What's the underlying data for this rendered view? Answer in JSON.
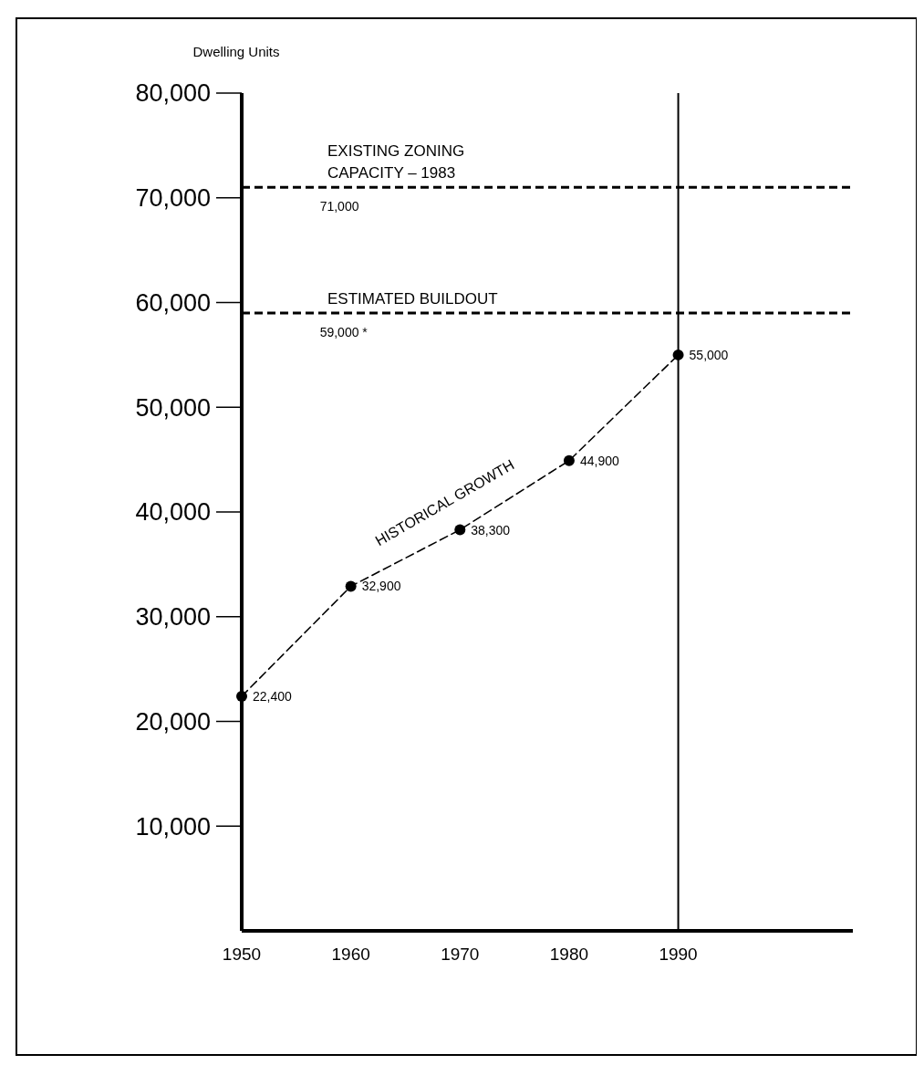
{
  "chart_data": {
    "type": "line",
    "ylabel": "Dwelling Units",
    "x": [
      1950,
      1960,
      1970,
      1980,
      1990
    ],
    "series": [
      {
        "name": "HISTORICAL GROWTH",
        "color": "#000000",
        "values": [
          22400,
          32900,
          38300,
          44900,
          55000
        ],
        "value_labels": [
          "22,400",
          "32,900",
          "38,300",
          "44,900",
          "55,000"
        ]
      }
    ],
    "xlim": [
      1950,
      2006
    ],
    "xticks": [
      1950,
      1960,
      1970,
      1980,
      1990
    ],
    "ylim": [
      0,
      80000
    ],
    "yticks": [
      {
        "value": 10000,
        "label": "10,000"
      },
      {
        "value": 20000,
        "label": "20,000"
      },
      {
        "value": 30000,
        "label": "30,000"
      },
      {
        "value": 40000,
        "label": "40,000"
      },
      {
        "value": 50000,
        "label": "50,000"
      },
      {
        "value": 60000,
        "label": "60,000"
      },
      {
        "value": 70000,
        "label": "70,000"
      },
      {
        "value": 80000,
        "label": "80,000"
      }
    ],
    "ref_lines": [
      {
        "axis": "y",
        "value": 71000,
        "label": "EXISTING ZONING\nCAPACITY – 1983",
        "line_style": "dashed"
      },
      {
        "axis": "y",
        "value": 59000,
        "label": "ESTIMATED BUILDOUT",
        "line_style": "dashed"
      },
      {
        "axis": "x",
        "value": 1990,
        "line_style": "solid"
      }
    ],
    "annotations": [
      {
        "text": "71,000",
        "x": 1960,
        "y": 71000
      },
      {
        "text": "59,000 *",
        "x": 1960,
        "y": 59000
      }
    ],
    "marker": "circle",
    "line_style": "dashed"
  }
}
